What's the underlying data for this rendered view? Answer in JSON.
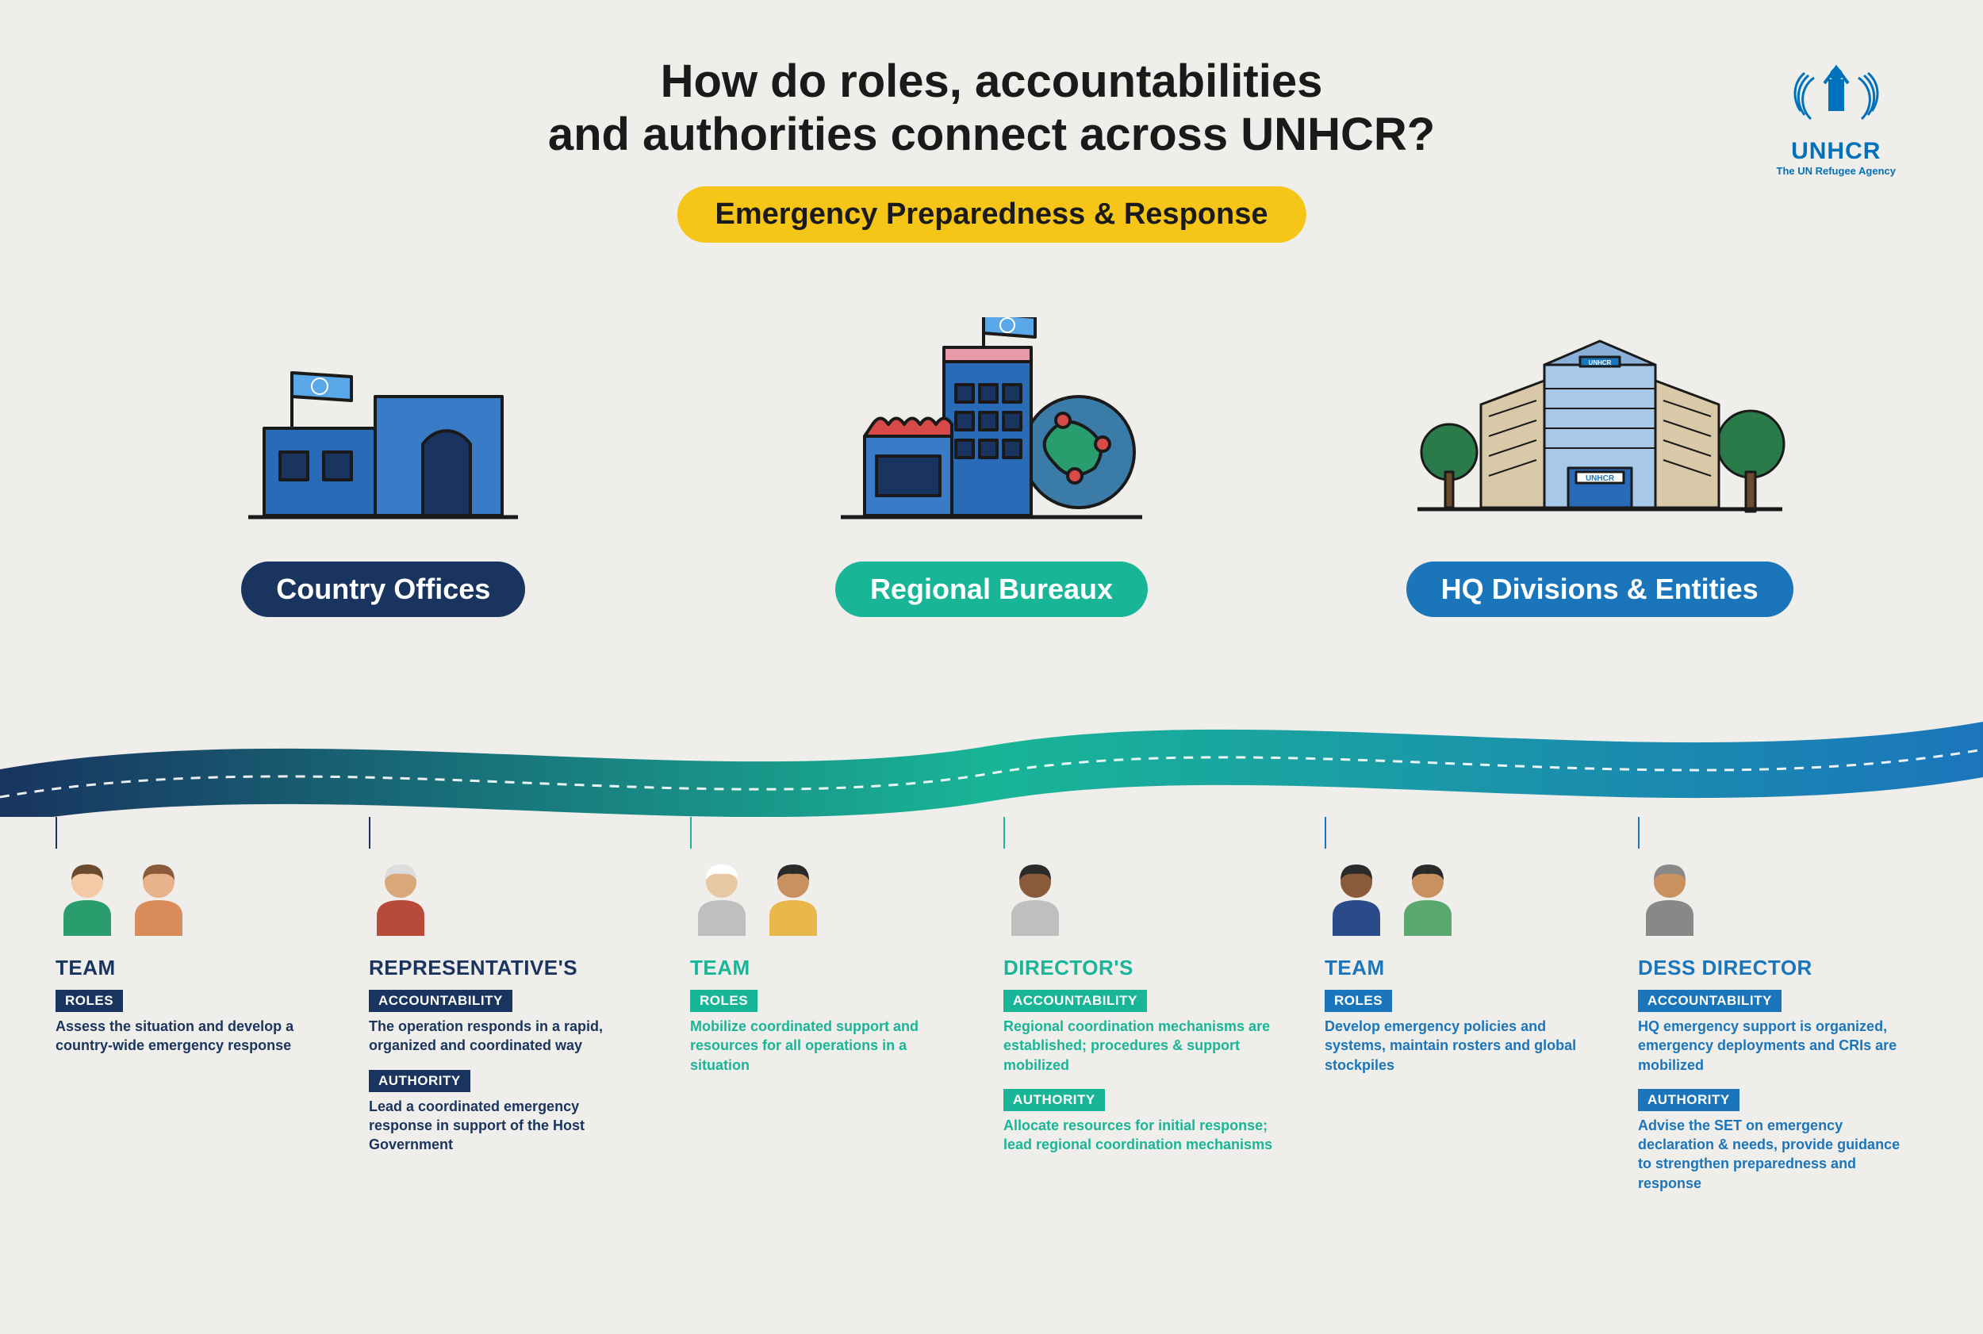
{
  "title_line1": "How do roles, accountabilities",
  "title_line2": "and authorities connect across UNHCR?",
  "subtitle": "Emergency Preparedness & Response",
  "logo": {
    "name": "UNHCR",
    "tagline": "The UN Refugee Agency",
    "color": "#0072bc"
  },
  "colors": {
    "background": "#f0eeea",
    "title_text": "#1a1a1a",
    "subtitle_pill_bg": "#f5c518",
    "country": "#18345f",
    "regional": "#19b597",
    "hq": "#1b75bb",
    "wave_start": "#18345f",
    "wave_mid": "#19b597",
    "wave_end": "#1b75bb"
  },
  "columns": [
    {
      "id": "country",
      "label": "Country Offices",
      "pill_color": "#18345f"
    },
    {
      "id": "regional",
      "label": "Regional Bureaux",
      "pill_color": "#19b597"
    },
    {
      "id": "hq",
      "label": "HQ Divisions & Entities",
      "pill_color": "#1b75bb"
    }
  ],
  "groups": [
    {
      "color": "#18345f",
      "subs": [
        {
          "title": "TEAM",
          "people_count": 2,
          "blocks": [
            {
              "tag": "ROLES",
              "desc": "Assess the situation and develop a country-wide emergency response"
            }
          ]
        },
        {
          "title": "REPRESENTATIVE'S",
          "people_count": 1,
          "blocks": [
            {
              "tag": "ACCOUNTABILITY",
              "desc": "The operation responds  in a rapid, organized and coordinated way"
            },
            {
              "tag": "AUTHORITY",
              "desc": "Lead a coordinated emergency response in support of the Host Government"
            }
          ]
        }
      ]
    },
    {
      "color": "#19b597",
      "subs": [
        {
          "title": "TEAM",
          "people_count": 2,
          "blocks": [
            {
              "tag": "ROLES",
              "desc": "Mobilize coordinated support and resources for all operations in a situation"
            }
          ]
        },
        {
          "title": "DIRECTOR'S",
          "people_count": 1,
          "blocks": [
            {
              "tag": "ACCOUNTABILITY",
              "desc": "Regional coordination mechanisms are established; procedures & support mobilized"
            },
            {
              "tag": "AUTHORITY",
              "desc": "Allocate resources for initial response; lead regional coordination mechanisms"
            }
          ]
        }
      ]
    },
    {
      "color": "#1b75bb",
      "subs": [
        {
          "title": "TEAM",
          "people_count": 2,
          "blocks": [
            {
              "tag": "ROLES",
              "desc": "Develop emergency policies and systems, maintain rosters and global stockpiles"
            }
          ]
        },
        {
          "title": "DESS DIRECTOR",
          "people_count": 1,
          "blocks": [
            {
              "tag": "ACCOUNTABILITY",
              "desc": "HQ emergency support is organized, emergency deployments and CRIs are mobilized"
            },
            {
              "tag": "AUTHORITY",
              "desc": "Advise the SET on emergency declaration & needs, provide guidance to strengthen preparedness and response"
            }
          ]
        }
      ]
    }
  ],
  "people_palette": [
    {
      "skin": "#f4c9a5",
      "hair": "#6b4a2e",
      "top": "#2a9d6e"
    },
    {
      "skin": "#e8b28a",
      "hair": "#8a5a3a",
      "top": "#d98c5a"
    },
    {
      "skin": "#d9a87a",
      "hair": "#ddd",
      "top": "#b84a3a"
    },
    {
      "skin": "#e8c9a5",
      "hair": "#fff",
      "top": "#bfbfbf"
    },
    {
      "skin": "#c9915f",
      "hair": "#2a2a2a",
      "top": "#e8b84a"
    },
    {
      "skin": "#8a5a3a",
      "hair": "#2a2a2a",
      "top": "#bfbfbf"
    },
    {
      "skin": "#8a5a3a",
      "hair": "#2a2a2a",
      "top": "#2a4a8a"
    },
    {
      "skin": "#c9915f",
      "hair": "#2a2a2a",
      "top": "#5aa86e"
    },
    {
      "skin": "#c9915f",
      "hair": "#888",
      "top": "#888"
    }
  ]
}
